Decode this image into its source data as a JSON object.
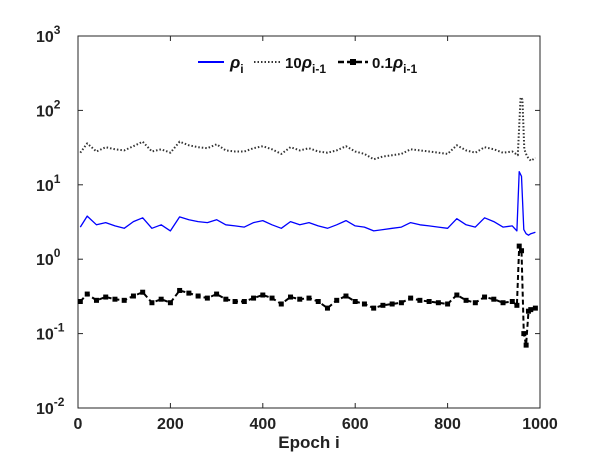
{
  "chart_data": {
    "type": "line",
    "title": "",
    "xlabel": "Epoch i",
    "ylabel": "",
    "xlim": [
      0,
      1000
    ],
    "ylim": [
      0.01,
      1000
    ],
    "yscale": "log",
    "grid": false,
    "legend_position": "top-center",
    "x_ticks": [
      "0",
      "200",
      "400",
      "600",
      "800",
      "1000"
    ],
    "y_ticks": [
      {
        "base": "10",
        "exp": "-2"
      },
      {
        "base": "10",
        "exp": "-1"
      },
      {
        "base": "10",
        "exp": "0"
      },
      {
        "base": "10",
        "exp": "1"
      },
      {
        "base": "10",
        "exp": "2"
      },
      {
        "base": "10",
        "exp": "3"
      }
    ],
    "legend": [
      {
        "prefix": "",
        "symbol": "ρ",
        "sub": "i",
        "style": "solid",
        "color": "#0000ff"
      },
      {
        "prefix": "10",
        "symbol": "ρ",
        "sub": "i-1",
        "style": "dotted",
        "color": "#333333"
      },
      {
        "prefix": "0.1",
        "symbol": "ρ",
        "sub": "i-1",
        "style": "dash-square",
        "color": "#000000"
      }
    ],
    "series": [
      {
        "style": "solid",
        "color": "#0000ff",
        "x": [
          5,
          20,
          40,
          60,
          80,
          100,
          120,
          140,
          160,
          180,
          200,
          220,
          240,
          260,
          280,
          300,
          320,
          340,
          360,
          380,
          400,
          420,
          440,
          460,
          480,
          500,
          520,
          540,
          560,
          580,
          600,
          620,
          640,
          660,
          680,
          700,
          720,
          740,
          760,
          780,
          800,
          820,
          840,
          860,
          880,
          900,
          920,
          940,
          950,
          955,
          960,
          965,
          970,
          975,
          980,
          990
        ],
        "y": [
          2.7,
          3.8,
          2.9,
          3.1,
          2.8,
          2.6,
          3.2,
          3.6,
          2.6,
          2.9,
          2.4,
          3.7,
          3.4,
          3.2,
          3.1,
          3.4,
          2.9,
          2.8,
          2.7,
          3.1,
          3.3,
          2.9,
          2.6,
          3.2,
          2.9,
          3.1,
          2.8,
          2.6,
          2.9,
          3.3,
          2.8,
          2.7,
          2.4,
          2.5,
          2.6,
          2.7,
          3.1,
          2.9,
          2.8,
          2.7,
          2.6,
          3.5,
          2.9,
          2.7,
          3.6,
          3.2,
          2.7,
          2.8,
          2.4,
          15,
          13,
          2.5,
          2.2,
          2.1,
          2.2,
          2.3
        ]
      },
      {
        "style": "dotted",
        "color": "#333333",
        "x": [
          5,
          20,
          40,
          60,
          80,
          100,
          120,
          140,
          160,
          180,
          200,
          220,
          240,
          260,
          280,
          300,
          320,
          340,
          360,
          380,
          400,
          420,
          440,
          460,
          480,
          500,
          520,
          540,
          560,
          580,
          600,
          620,
          640,
          660,
          680,
          700,
          720,
          740,
          760,
          780,
          800,
          820,
          840,
          860,
          880,
          900,
          920,
          940,
          952,
          958,
          962,
          966,
          972,
          980,
          990
        ],
        "y": [
          27,
          36,
          28,
          32,
          30,
          29,
          33,
          38,
          28,
          30,
          27,
          38,
          34,
          32,
          31,
          35,
          29,
          28,
          28,
          31,
          33,
          30,
          26,
          32,
          29,
          31,
          28,
          27,
          29,
          33,
          28,
          26,
          22,
          24,
          25,
          26,
          30,
          29,
          28,
          27,
          26,
          34,
          29,
          27,
          32,
          30,
          27,
          28,
          25,
          150,
          140,
          30,
          24,
          21,
          23
        ]
      },
      {
        "style": "dash-square",
        "color": "#000000",
        "x": [
          5,
          20,
          40,
          60,
          80,
          100,
          120,
          140,
          160,
          180,
          200,
          220,
          240,
          260,
          280,
          300,
          320,
          340,
          360,
          380,
          400,
          420,
          440,
          460,
          480,
          500,
          520,
          540,
          560,
          580,
          600,
          620,
          640,
          660,
          680,
          700,
          720,
          740,
          760,
          780,
          800,
          820,
          840,
          860,
          880,
          900,
          920,
          940,
          950,
          955,
          960,
          965,
          970,
          975,
          980,
          990
        ],
        "y": [
          0.27,
          0.34,
          0.28,
          0.31,
          0.29,
          0.28,
          0.32,
          0.36,
          0.26,
          0.29,
          0.26,
          0.38,
          0.35,
          0.32,
          0.3,
          0.34,
          0.29,
          0.27,
          0.27,
          0.3,
          0.33,
          0.3,
          0.25,
          0.31,
          0.29,
          0.3,
          0.27,
          0.22,
          0.28,
          0.32,
          0.27,
          0.25,
          0.22,
          0.24,
          0.25,
          0.26,
          0.3,
          0.28,
          0.27,
          0.26,
          0.25,
          0.33,
          0.28,
          0.26,
          0.31,
          0.29,
          0.26,
          0.27,
          0.24,
          1.5,
          1.3,
          0.1,
          0.07,
          0.2,
          0.21,
          0.22
        ]
      }
    ]
  }
}
